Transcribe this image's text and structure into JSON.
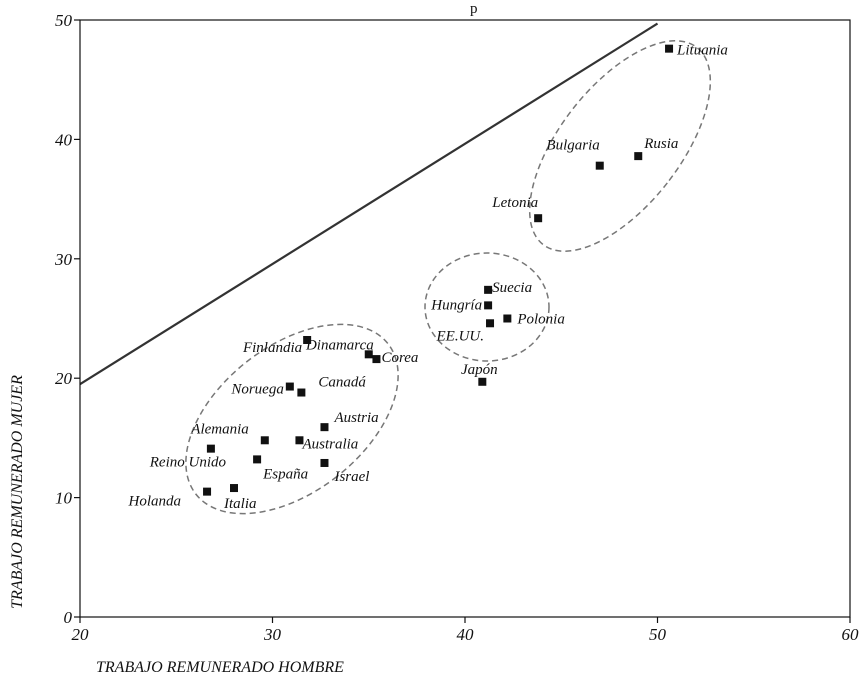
{
  "chart_data": {
    "type": "scatter",
    "top_text": "p",
    "xlabel": "TRABAJO REMUNERADO HOMBRE",
    "ylabel": "TRABAJO REMUNERADO MUJER",
    "xlim": [
      20,
      60
    ],
    "ylim": [
      0,
      50
    ],
    "x_ticks": [
      20,
      30,
      40,
      50,
      60
    ],
    "y_ticks": [
      0,
      10,
      20,
      30,
      40,
      50
    ],
    "grid": false,
    "reference_line": {
      "x": [
        20,
        50
      ],
      "y": [
        19.5,
        49.7
      ]
    },
    "points": [
      {
        "label": "Lituania",
        "x": 50.6,
        "y": 47.6
      },
      {
        "label": "Bulgaria",
        "x": 47.0,
        "y": 37.8
      },
      {
        "label": "Rusia",
        "x": 49.0,
        "y": 38.6
      },
      {
        "label": "Letonia",
        "x": 43.8,
        "y": 33.4
      },
      {
        "label": "Suecia",
        "x": 41.2,
        "y": 27.4
      },
      {
        "label": "Hungría",
        "x": 41.2,
        "y": 26.1
      },
      {
        "label": "Polonia",
        "x": 42.2,
        "y": 25.0
      },
      {
        "label": "EE.UU.",
        "x": 41.3,
        "y": 24.6
      },
      {
        "label": "Japón",
        "x": 40.9,
        "y": 19.7
      },
      {
        "label": "Finlandia",
        "x": 31.8,
        "y": 23.2
      },
      {
        "label": "Dinamarca",
        "x": 35.0,
        "y": 22.0
      },
      {
        "label": "Corea",
        "x": 35.4,
        "y": 21.6
      },
      {
        "label": "Noruega",
        "x": 30.9,
        "y": 19.3
      },
      {
        "label": "Canadá",
        "x": 31.5,
        "y": 18.8
      },
      {
        "label": "Austria",
        "x": 32.7,
        "y": 15.9
      },
      {
        "label": "Alemania",
        "x": 29.6,
        "y": 14.8
      },
      {
        "label": "Australia",
        "x": 31.4,
        "y": 14.8
      },
      {
        "label": "Reino Unido",
        "x": 26.8,
        "y": 14.1
      },
      {
        "label": "España",
        "x": 29.2,
        "y": 13.2
      },
      {
        "label": "Israel",
        "x": 32.7,
        "y": 12.9
      },
      {
        "label": "Italia",
        "x": 28.0,
        "y": 10.8
      },
      {
        "label": "Holanda",
        "x": 26.6,
        "y": 10.5
      }
    ]
  }
}
